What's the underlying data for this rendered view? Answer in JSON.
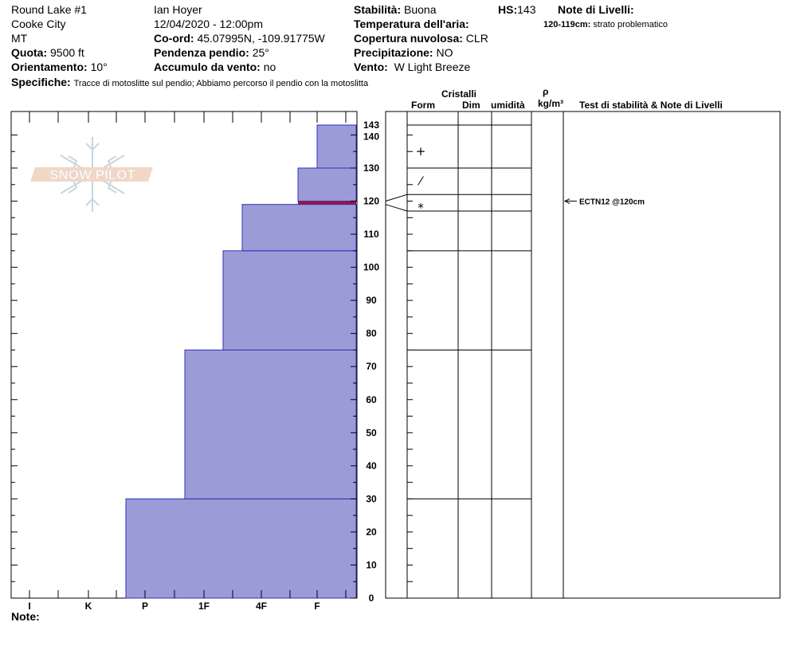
{
  "header": {
    "location": "Round Lake #1",
    "city": "Cooke City",
    "state": "MT",
    "elevation_label": "Quota:",
    "elevation": "9500 ft",
    "aspect_label": "Orientamento:",
    "aspect": "10°",
    "observer": "Ian Hoyer",
    "datetime": "12/04/2020 - 12:00pm",
    "coord_label": "Co-ord:",
    "coord": "45.07995N, -109.91775W",
    "slope_label": "Pendenza pendio:",
    "slope": "25°",
    "wind_loading_label": "Accumulo da vento:",
    "wind_loading": "no",
    "stability_label": "Stabilità:",
    "stability": "Buona",
    "air_temp_label": "Temperatura dell'aria:",
    "air_temp": "",
    "cloud_label": "Copertura nuvolosa:",
    "cloud": "CLR",
    "precip_label": "Precipitazione:",
    "precip": "NO",
    "wind_label": "Vento:",
    "wind": "W Light Breeze",
    "hs_label": "HS:",
    "hs": "143",
    "layer_notes_label": "Note di Livelli:",
    "layer_note_range": "120-119cm:",
    "layer_note_text": "strato problematico",
    "specifics_label": "Specifiche:",
    "specifics": "Tracce di motoslitte sul pendio; Abbiamo percorso il pendio con la motoslitta"
  },
  "columns": {
    "crystals": "Cristalli",
    "form": "Form",
    "dim": "Dim",
    "moisture": "umidità",
    "rho": "ρ",
    "density_unit": "kg/m³",
    "stability_notes": "Test di stabilità & Note di Livelli"
  },
  "logo_text": "SNOW PILOT",
  "note_label": "Note:",
  "colors": {
    "layer_fill": "#9b9bd7",
    "layer_stroke": "#3030c0",
    "problem_layer": "#8b1a50"
  },
  "chart_data": {
    "type": "bar",
    "orientation": "horizontal",
    "title": "",
    "ylabel": "",
    "ylim": [
      0,
      143
    ],
    "y_ticks": [
      0,
      10,
      20,
      30,
      40,
      50,
      60,
      70,
      80,
      90,
      100,
      110,
      120,
      130,
      140,
      143
    ],
    "hardness_scale": [
      "I",
      "K",
      "P",
      "1F",
      "4F",
      "F"
    ],
    "layers": [
      {
        "bottom": 0,
        "top": 30,
        "hardness": "P+"
      },
      {
        "bottom": 30,
        "top": 75,
        "hardness": "1F+"
      },
      {
        "bottom": 75,
        "top": 105,
        "hardness": "1F-"
      },
      {
        "bottom": 105,
        "top": 119,
        "hardness": "4F+"
      },
      {
        "bottom": 120,
        "top": 130,
        "hardness": "F+"
      },
      {
        "bottom": 130,
        "top": 143,
        "hardness": "F"
      }
    ],
    "problem_layer": {
      "bottom": 119,
      "top": 120
    },
    "grain_symbols": [
      {
        "height": 135,
        "symbol": "+"
      },
      {
        "height": 126,
        "symbol": "⁄"
      },
      {
        "height": 118,
        "symbol": "*"
      }
    ],
    "stability_tests": [
      {
        "height": 120,
        "text": "ECTN12 @120cm"
      }
    ]
  }
}
